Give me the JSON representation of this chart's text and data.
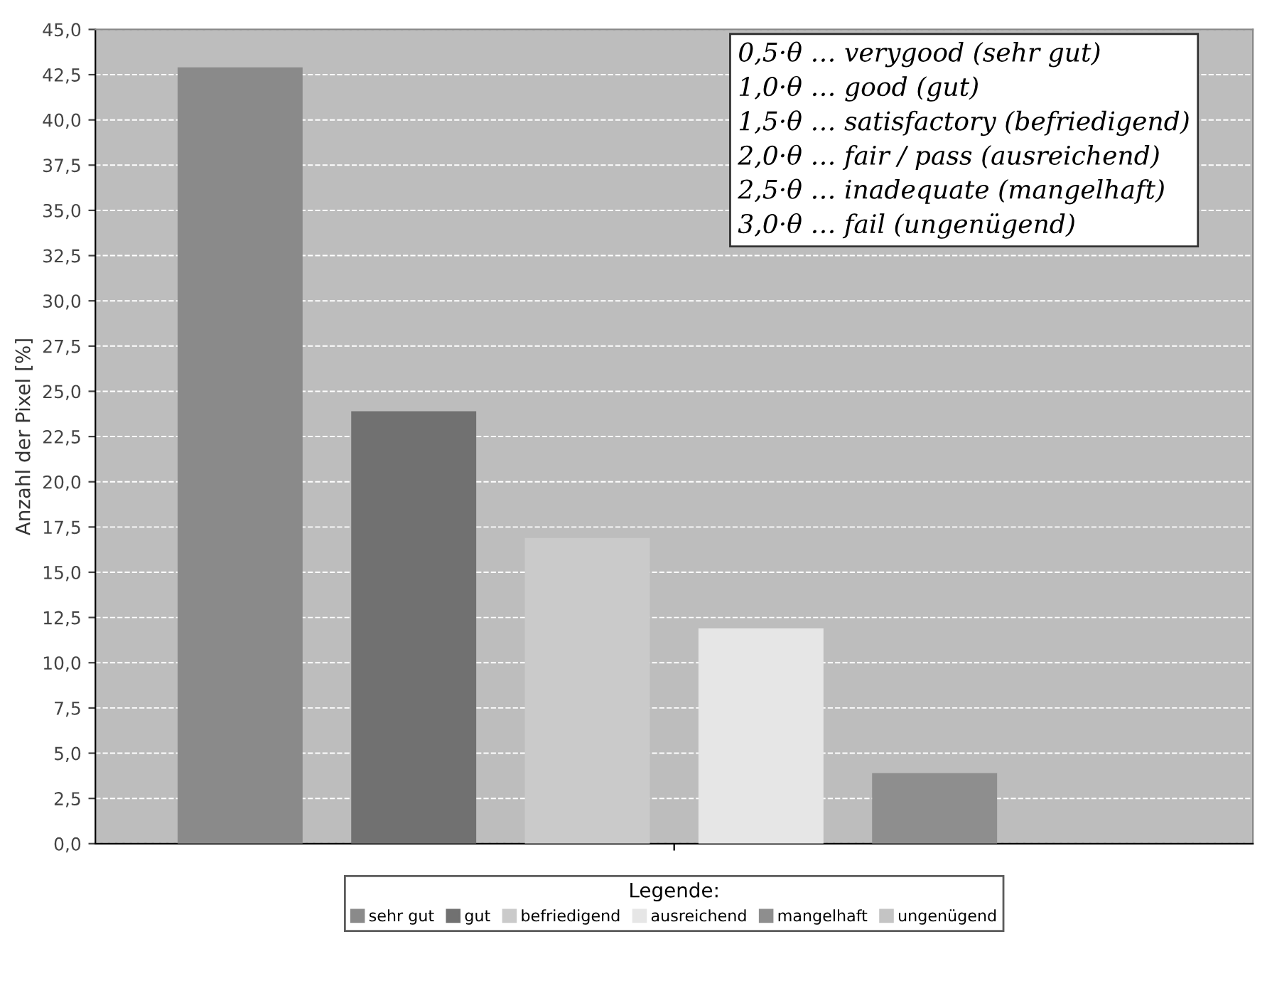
{
  "chart_data": {
    "type": "bar",
    "ylabel": "Anzahl der Pixel [%]",
    "legend_title": "Legende:",
    "categories": [
      null
    ],
    "series": [
      {
        "name": "sehr gut",
        "color": "#8a8a8a",
        "values": [
          42.9
        ]
      },
      {
        "name": "gut",
        "color": "#717171",
        "values": [
          23.9
        ]
      },
      {
        "name": "befriedigend",
        "color": "#cacaca",
        "values": [
          16.9
        ]
      },
      {
        "name": "ausreichend",
        "color": "#e6e6e6",
        "values": [
          11.9
        ]
      },
      {
        "name": "mangelhaft",
        "color": "#8e8e8e",
        "values": [
          3.9
        ]
      },
      {
        "name": "ungenügend",
        "color": "#c4c4c4",
        "values": [
          0
        ]
      }
    ],
    "ylim": [
      0,
      45
    ],
    "yticks": [
      {
        "value": 0,
        "label": "0,0"
      },
      {
        "value": 2.5,
        "label": "2,5"
      },
      {
        "value": 5,
        "label": "5,0"
      },
      {
        "value": 7.5,
        "label": "7,5"
      },
      {
        "value": 10,
        "label": "10,0"
      },
      {
        "value": 12.5,
        "label": "12,5"
      },
      {
        "value": 15,
        "label": "15,0"
      },
      {
        "value": 17.5,
        "label": "17,5"
      },
      {
        "value": 20,
        "label": "20,0"
      },
      {
        "value": 22.5,
        "label": "22,5"
      },
      {
        "value": 25,
        "label": "25,0"
      },
      {
        "value": 27.5,
        "label": "27,5"
      },
      {
        "value": 30,
        "label": "30,0"
      },
      {
        "value": 32.5,
        "label": "32,5"
      },
      {
        "value": 35,
        "label": "35,0"
      },
      {
        "value": 37.5,
        "label": "37,5"
      },
      {
        "value": 40,
        "label": "40,0"
      },
      {
        "value": 42.5,
        "label": "42,5"
      },
      {
        "value": 45,
        "label": "45,0"
      }
    ],
    "grid": "y",
    "legend": "bottom",
    "annotations": [
      "0,5·θ … verygood (sehr gut)",
      "1,0·θ … good (gut)",
      "1,5·θ … satisfactory (befriedigend)",
      "2,0·θ … fair / pass (ausreichend)",
      "2,5·θ … inadequate (mangelhaft)",
      "3,0·θ … fail (ungenügend)"
    ]
  }
}
